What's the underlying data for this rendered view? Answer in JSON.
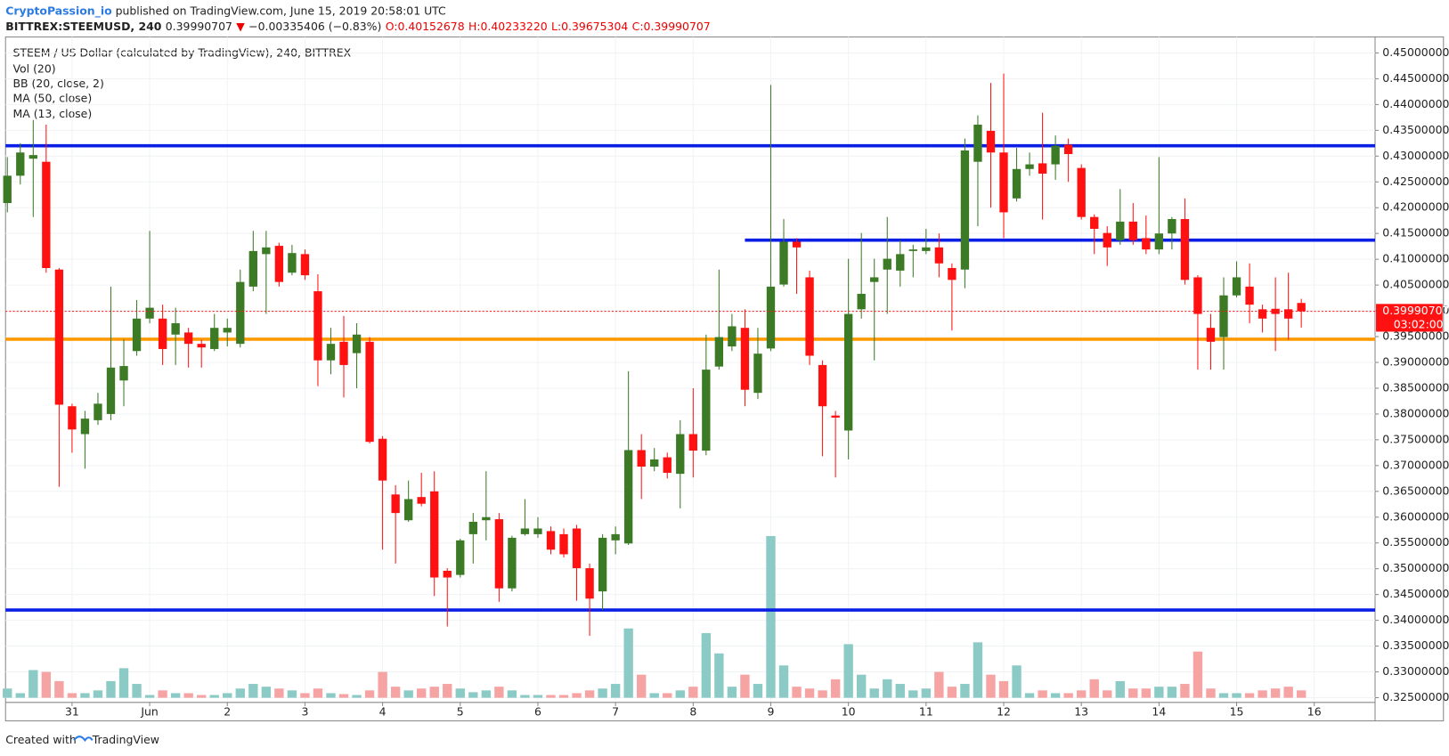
{
  "header": {
    "author": "CryptoPassion_io",
    "published": "published on TradingView.com, June 15, 2019 20:58:01 UTC",
    "symbol": "BITTREX:STEEMUSD, 240",
    "last": "0.39990707",
    "arrow": "▼",
    "change": "−0.00335406 (−0.83%)",
    "o": "O:0.40152678",
    "h": "H:0.40233220",
    "l": "L:0.39675304",
    "c": "C:0.39990707"
  },
  "legend": [
    "STEEM / US Dollar (calculated by TradingView), 240, BITTREX",
    "Vol (20)",
    "BB (20, close, 2)",
    "MA (50, close)",
    "MA (13, close)"
  ],
  "footer": {
    "created": "Created with",
    "brand": "TradingView"
  },
  "chart_data": {
    "type": "candlestick",
    "up_color": "#3c7a25",
    "down_color": "#ff1111",
    "volume_up_color": "#8ccbc5",
    "volume_down_color": "#f5a3a3",
    "grid": true,
    "xlim": [
      -0.14,
      105.7
    ],
    "ylim": [
      0.3205,
      0.4531
    ],
    "xticks": [
      {
        "value": 5,
        "label": "31"
      },
      {
        "value": 11,
        "label": "Jun"
      },
      {
        "value": 17,
        "label": "2"
      },
      {
        "value": 23,
        "label": "3"
      },
      {
        "value": 29,
        "label": "4"
      },
      {
        "value": 35,
        "label": "5"
      },
      {
        "value": 41,
        "label": "6"
      },
      {
        "value": 47,
        "label": "7"
      },
      {
        "value": 53,
        "label": "8"
      },
      {
        "value": 59,
        "label": "9"
      },
      {
        "value": 65,
        "label": "10"
      },
      {
        "value": 71,
        "label": "11"
      },
      {
        "value": 77,
        "label": "12"
      },
      {
        "value": 83,
        "label": "13"
      },
      {
        "value": 89,
        "label": "14"
      },
      {
        "value": 95,
        "label": "15"
      },
      {
        "value": 101,
        "label": "16"
      }
    ],
    "yticks": [
      {
        "value": 0.325,
        "label": "0.32500000"
      },
      {
        "value": 0.33,
        "label": "0.33000000"
      },
      {
        "value": 0.335,
        "label": "0.33500000"
      },
      {
        "value": 0.34,
        "label": "0.34000000"
      },
      {
        "value": 0.345,
        "label": "0.34500000"
      },
      {
        "value": 0.35,
        "label": "0.35000000"
      },
      {
        "value": 0.355,
        "label": "0.35500000"
      },
      {
        "value": 0.36,
        "label": "0.36000000"
      },
      {
        "value": 0.365,
        "label": "0.36500000"
      },
      {
        "value": 0.37,
        "label": "0.37000000"
      },
      {
        "value": 0.375,
        "label": "0.37500000"
      },
      {
        "value": 0.38,
        "label": "0.38000000"
      },
      {
        "value": 0.385,
        "label": "0.38500000"
      },
      {
        "value": 0.39,
        "label": "0.39000000"
      },
      {
        "value": 0.395,
        "label": "0.39500000"
      },
      {
        "value": 0.4,
        "label": "0.40000000"
      },
      {
        "value": 0.405,
        "label": "0.40500000"
      },
      {
        "value": 0.41,
        "label": "0.41000000"
      },
      {
        "value": 0.415,
        "label": "0.41500000"
      },
      {
        "value": 0.42,
        "label": "0.42000000"
      },
      {
        "value": 0.425,
        "label": "0.42500000"
      },
      {
        "value": 0.43,
        "label": "0.43000000"
      },
      {
        "value": 0.435,
        "label": "0.43500000"
      },
      {
        "value": 0.44,
        "label": "0.44000000"
      },
      {
        "value": 0.445,
        "label": "0.44500000"
      },
      {
        "value": 0.45,
        "label": "0.45000000"
      }
    ],
    "open": [
      0.4209,
      0.4262,
      0.4295,
      0.4289,
      0.408,
      0.3815,
      0.3761,
      0.3788,
      0.38,
      0.3865,
      0.3922,
      0.3985,
      0.3985,
      0.3954,
      0.3958,
      0.3936,
      0.3926,
      0.3958,
      0.3936,
      0.4047,
      0.411,
      0.4126,
      0.4074,
      0.411,
      0.4038,
      0.3904,
      0.394,
      0.3918,
      0.394,
      0.3752,
      0.3644,
      0.3594,
      0.3639,
      0.365,
      0.3496,
      0.3488,
      0.3567,
      0.3594,
      0.3596,
      0.3462,
      0.3567,
      0.3567,
      0.3573,
      0.3567,
      0.3578,
      0.3501,
      0.3456,
      0.3555,
      0.3549,
      0.373,
      0.3698,
      0.3716,
      0.3684,
      0.3761,
      0.3729,
      0.3892,
      0.3931,
      0.3967,
      0.3841,
      0.3927,
      0.4051,
      0.4134,
      0.4065,
      0.3895,
      0.3797,
      0.3768,
      0.4003,
      0.4056,
      0.408,
      0.4078,
      0.4116,
      0.4116,
      0.4123,
      0.4083,
      0.408,
      0.4289,
      0.4349,
      0.4307,
      0.4218,
      0.4275,
      0.4286,
      0.4284,
      0.4322,
      0.4277,
      0.4182,
      0.4151,
      0.4137,
      0.4173,
      0.4141,
      0.4119,
      0.415,
      0.4178,
      0.4065,
      0.3967,
      0.3949,
      0.403,
      0.4047,
      0.4003,
      0.4004,
      0.4003,
      0.40152678
    ],
    "high": [
      0.4298,
      0.4325,
      0.437,
      0.4361,
      0.4083,
      0.382,
      0.3806,
      0.3841,
      0.4047,
      0.3945,
      0.4021,
      0.4155,
      0.4012,
      0.4006,
      0.3967,
      0.3944,
      0.3994,
      0.3985,
      0.408,
      0.4155,
      0.4155,
      0.4132,
      0.4128,
      0.4119,
      0.4071,
      0.3967,
      0.399,
      0.3976,
      0.3949,
      0.3757,
      0.3662,
      0.3671,
      0.3686,
      0.3689,
      0.3501,
      0.3558,
      0.3608,
      0.3689,
      0.3608,
      0.3564,
      0.3635,
      0.36,
      0.3582,
      0.3578,
      0.3585,
      0.351,
      0.3567,
      0.3582,
      0.3883,
      0.3761,
      0.3734,
      0.3725,
      0.3788,
      0.385,
      0.3954,
      0.408,
      0.3994,
      0.4003,
      0.3967,
      0.4438,
      0.4178,
      0.4141,
      0.4078,
      0.3904,
      0.3806,
      0.4101,
      0.4151,
      0.4101,
      0.4182,
      0.4137,
      0.4128,
      0.4159,
      0.415,
      0.4092,
      0.4334,
      0.4379,
      0.4442,
      0.446,
      0.4316,
      0.4307,
      0.4384,
      0.434,
      0.4334,
      0.4284,
      0.4187,
      0.4164,
      0.4236,
      0.4209,
      0.4185,
      0.4298,
      0.4182,
      0.4218,
      0.4069,
      0.3994,
      0.4065,
      0.4096,
      0.4092,
      0.4012,
      0.4065,
      0.4074,
      0.4023322
    ],
    "low": [
      0.4191,
      0.4245,
      0.4182,
      0.4074,
      0.3659,
      0.3725,
      0.3694,
      0.3779,
      0.3788,
      0.3815,
      0.3913,
      0.3976,
      0.3895,
      0.3895,
      0.389,
      0.389,
      0.3922,
      0.3931,
      0.3929,
      0.4038,
      0.3994,
      0.4047,
      0.4069,
      0.406,
      0.3854,
      0.3877,
      0.3832,
      0.385,
      0.3743,
      0.3537,
      0.351,
      0.3591,
      0.3621,
      0.3447,
      0.3388,
      0.3483,
      0.351,
      0.3555,
      0.3436,
      0.3456,
      0.3564,
      0.356,
      0.3528,
      0.3522,
      0.3438,
      0.337,
      0.342,
      0.3528,
      0.3546,
      0.3635,
      0.3689,
      0.3675,
      0.3617,
      0.3677,
      0.372,
      0.3886,
      0.3922,
      0.3815,
      0.3829,
      0.3922,
      0.4047,
      0.4033,
      0.3895,
      0.3718,
      0.3677,
      0.3712,
      0.3985,
      0.3904,
      0.3994,
      0.4047,
      0.4065,
      0.411,
      0.4065,
      0.3962,
      0.4044,
      0.4164,
      0.42,
      0.4141,
      0.4212,
      0.4262,
      0.4177,
      0.4254,
      0.425,
      0.4177,
      0.411,
      0.4087,
      0.4128,
      0.4128,
      0.411,
      0.411,
      0.4119,
      0.4051,
      0.3886,
      0.3886,
      0.3886,
      0.4026,
      0.3976,
      0.3958,
      0.3922,
      0.3944,
      0.39675304
    ],
    "close": [
      0.4262,
      0.4307,
      0.4302,
      0.4083,
      0.3818,
      0.377,
      0.3791,
      0.382,
      0.389,
      0.3893,
      0.3985,
      0.4006,
      0.3926,
      0.3976,
      0.3936,
      0.3929,
      0.3967,
      0.3967,
      0.4056,
      0.4116,
      0.4123,
      0.4056,
      0.4112,
      0.4069,
      0.3904,
      0.3936,
      0.3895,
      0.3954,
      0.3746,
      0.3671,
      0.3608,
      0.3635,
      0.3626,
      0.3483,
      0.3483,
      0.3555,
      0.3591,
      0.36,
      0.3462,
      0.356,
      0.3578,
      0.3578,
      0.3537,
      0.3528,
      0.3501,
      0.3442,
      0.356,
      0.3567,
      0.373,
      0.3698,
      0.3712,
      0.3686,
      0.3761,
      0.3729,
      0.3886,
      0.3949,
      0.397,
      0.3847,
      0.3917,
      0.4047,
      0.4134,
      0.4123,
      0.3913,
      0.3815,
      0.3793,
      0.3994,
      0.4033,
      0.4065,
      0.4101,
      0.411,
      0.4119,
      0.4123,
      0.4092,
      0.406,
      0.4311,
      0.4361,
      0.4307,
      0.4191,
      0.4275,
      0.4284,
      0.4266,
      0.432,
      0.4304,
      0.4182,
      0.4159,
      0.4123,
      0.4173,
      0.4137,
      0.4119,
      0.415,
      0.4178,
      0.406,
      0.3994,
      0.394,
      0.403,
      0.4065,
      0.4012,
      0.3985,
      0.3994,
      0.3985,
      0.39990707
    ],
    "volume": [
      10,
      5,
      30,
      28,
      18,
      5,
      5,
      8,
      18,
      32,
      15,
      3,
      8,
      5,
      5,
      3,
      3,
      5,
      10,
      15,
      12,
      10,
      8,
      5,
      10,
      5,
      4,
      3,
      8,
      28,
      12,
      8,
      10,
      12,
      15,
      10,
      6,
      8,
      12,
      8,
      3,
      3,
      3,
      3,
      5,
      8,
      10,
      15,
      75,
      25,
      5,
      5,
      8,
      12,
      70,
      48,
      12,
      25,
      15,
      175,
      35,
      12,
      10,
      8,
      20,
      58,
      25,
      10,
      20,
      15,
      8,
      10,
      28,
      12,
      15,
      60,
      25,
      18,
      35,
      5,
      8,
      5,
      5,
      8,
      20,
      8,
      18,
      10,
      10,
      12,
      12,
      15,
      50,
      10,
      5,
      5,
      5,
      8,
      10,
      12,
      8
    ],
    "levels": [
      {
        "value": 0.432,
        "color": "#0a1ee6",
        "start": -0.14
      },
      {
        "value": 0.4137,
        "color": "#0a1ee6",
        "start": 57
      },
      {
        "value": 0.342,
        "color": "#0a1ee6",
        "start": -0.14
      },
      {
        "value": 0.3945,
        "color": "#ff9900",
        "start": -0.14
      }
    ],
    "last_price": {
      "value": 0.39990707,
      "label": "0.39990707",
      "countdown": "03:02:00",
      "color": "#ff1111"
    }
  }
}
